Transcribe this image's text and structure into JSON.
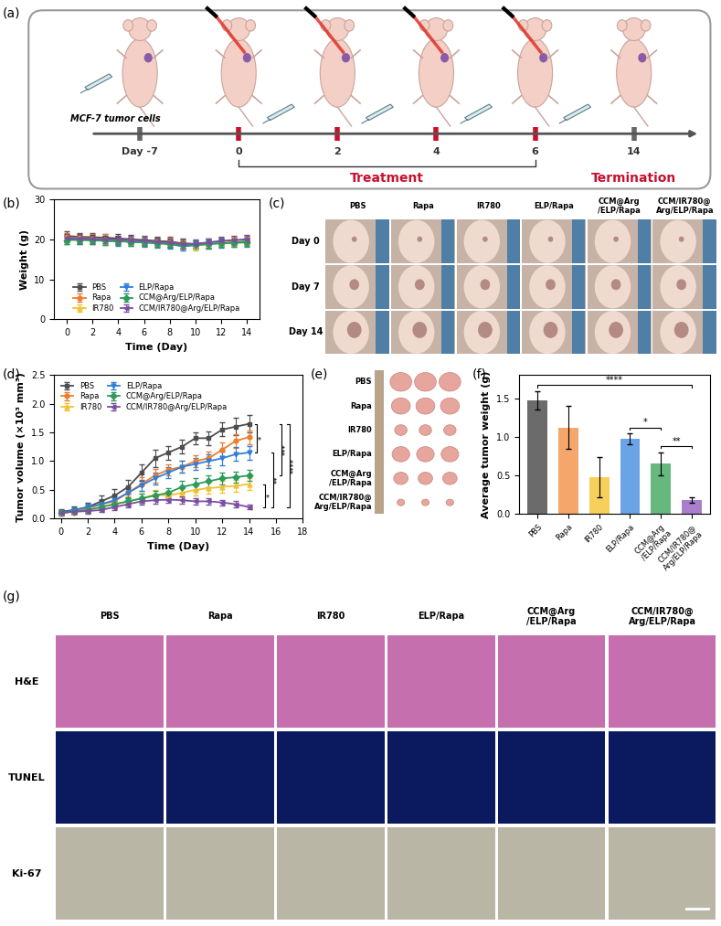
{
  "schematic": {
    "panel": "(a)",
    "cell_label": "MCF-7 tumor cells",
    "day_labels": [
      "Day -7",
      "0",
      "2",
      "4",
      "6",
      "14"
    ],
    "treatment_label": "Treatment",
    "termination_label": "Termination"
  },
  "photos": {
    "panel": "(c)",
    "columns": [
      "PBS",
      "Rapa",
      "IR780",
      "ELP/Rapa",
      "CCM@Arg\n/ELP/Rapa",
      "CCM/IR780@\nArg/ELP/Rapa"
    ],
    "rows": [
      "Day 0",
      "Day 7",
      "Day 14"
    ]
  },
  "tumors": {
    "panel": "(e)",
    "rows": [
      "PBS",
      "Rapa",
      "IR780",
      "ELP/Rapa",
      "CCM@Arg\n/ELP/Rapa",
      "CCM/IR780@\nArg/ELP/Rapa"
    ]
  },
  "histology": {
    "panel": "(g)",
    "columns": [
      "PBS",
      "Rapa",
      "IR780",
      "ELP/Rapa",
      "CCM@Arg\n/ELP/Rapa",
      "CCM/IR780@\nArg/ELP/Rapa"
    ],
    "rows": [
      "H&E",
      "TUNEL",
      "Ki-67"
    ]
  },
  "chart_data": [
    {
      "panel": "(b)",
      "type": "line",
      "xlabel": "Time (Day)",
      "ylabel": "Weight (g)",
      "x": [
        0,
        1,
        2,
        3,
        4,
        5,
        6,
        7,
        8,
        9,
        10,
        11,
        12,
        13,
        14
      ],
      "xlim": [
        -1,
        15
      ],
      "xticks": [
        0,
        2,
        4,
        6,
        8,
        10,
        12,
        14
      ],
      "ylim": [
        0,
        30
      ],
      "yticks": [
        0,
        10,
        20,
        30
      ],
      "legend": "lower center",
      "series": [
        {
          "name": "PBS",
          "color": "#4d4d4d",
          "marker": "square",
          "values": [
            20.8,
            20.6,
            20.5,
            20.4,
            20.2,
            20.0,
            19.8,
            19.6,
            19.4,
            19.0,
            18.8,
            19.0,
            19.4,
            19.6,
            19.8
          ],
          "errors": [
            1.2,
            1.0,
            1.1,
            1.0,
            1.2,
            1.0,
            1.1,
            1.0,
            1.2,
            1.1,
            1.0,
            1.1,
            1.0,
            1.0,
            1.1
          ]
        },
        {
          "name": "Rapa",
          "color": "#f07d2e",
          "marker": "circle",
          "values": [
            20.5,
            20.3,
            20.2,
            20.0,
            19.8,
            19.6,
            19.5,
            19.4,
            19.2,
            18.8,
            18.6,
            18.8,
            19.2,
            19.4,
            19.5
          ],
          "errors": [
            1.0,
            1.1,
            1.0,
            1.2,
            1.0,
            1.1,
            1.0,
            1.0,
            1.1,
            1.2,
            1.0,
            1.1,
            1.0,
            1.1,
            1.0
          ]
        },
        {
          "name": "IR780",
          "color": "#f2c230",
          "marker": "triangle_up",
          "values": [
            20.2,
            20.1,
            20.0,
            19.9,
            19.8,
            19.6,
            19.4,
            19.2,
            19.0,
            18.6,
            18.4,
            18.8,
            19.2,
            19.4,
            19.6
          ],
          "errors": [
            0.9,
            1.0,
            1.1,
            1.0,
            0.9,
            1.0,
            1.1,
            1.0,
            0.9,
            1.0,
            1.1,
            1.0,
            0.9,
            1.0,
            0.9
          ]
        },
        {
          "name": "ELP/Rapa",
          "color": "#2f7fd8",
          "marker": "triangle_down",
          "values": [
            20.0,
            19.9,
            19.8,
            19.6,
            19.5,
            19.4,
            19.2,
            19.0,
            18.8,
            18.2,
            18.5,
            18.8,
            19.0,
            19.2,
            19.4
          ],
          "errors": [
            1.1,
            1.0,
            0.9,
            1.0,
            1.1,
            1.0,
            0.9,
            1.0,
            1.1,
            1.0,
            0.9,
            1.0,
            1.1,
            1.0,
            1.0
          ]
        },
        {
          "name": "CCM@Arg/ELP/Rapa",
          "color": "#2e9b58",
          "marker": "diamond",
          "values": [
            19.8,
            19.8,
            19.7,
            19.6,
            19.5,
            19.3,
            19.2,
            19.0,
            18.8,
            18.5,
            18.6,
            18.8,
            19.0,
            19.1,
            19.2
          ],
          "errors": [
            1.0,
            0.9,
            1.0,
            1.1,
            1.0,
            0.9,
            1.0,
            1.1,
            1.0,
            0.9,
            1.0,
            1.1,
            1.0,
            0.9,
            1.0
          ]
        },
        {
          "name": "CCM/IR780@Arg/ELP/Rapa",
          "color": "#7b4ea3",
          "marker": "triangle_left",
          "values": [
            20.3,
            20.2,
            20.1,
            20.0,
            19.9,
            19.8,
            19.6,
            19.4,
            19.2,
            18.8,
            18.9,
            19.2,
            19.6,
            19.8,
            20.0
          ],
          "errors": [
            1.0,
            1.1,
            1.0,
            0.9,
            1.0,
            1.1,
            1.0,
            0.9,
            1.0,
            1.1,
            1.0,
            0.9,
            1.0,
            1.1,
            1.0
          ]
        }
      ]
    },
    {
      "panel": "(d)",
      "type": "line",
      "xlabel": "Time (Day)",
      "ylabel": "Tumor volume (×10³ mm³)",
      "x": [
        0,
        1,
        2,
        3,
        4,
        5,
        6,
        7,
        8,
        9,
        10,
        11,
        12,
        13,
        14
      ],
      "xlim": [
        -0.5,
        18
      ],
      "xticks": [
        0,
        2,
        4,
        6,
        8,
        10,
        12,
        14,
        16,
        18
      ],
      "ylim": [
        0,
        2.5
      ],
      "yticks": [
        {
          "value": 0,
          "label": "0.0"
        },
        {
          "value": 0.5,
          "label": "0.5"
        },
        {
          "value": 1.0,
          "label": "1.0"
        },
        {
          "value": 1.5,
          "label": "1.5"
        },
        {
          "value": 2.0,
          "label": "2.0"
        },
        {
          "value": 2.5,
          "label": "2.5"
        }
      ],
      "legend": "upper left",
      "series": [
        {
          "name": "PBS",
          "color": "#4d4d4d",
          "marker": "square",
          "values": [
            0.12,
            0.15,
            0.2,
            0.3,
            0.4,
            0.55,
            0.8,
            1.05,
            1.15,
            1.25,
            1.4,
            1.4,
            1.55,
            1.6,
            1.65
          ],
          "errors": [
            0.05,
            0.06,
            0.08,
            0.1,
            0.12,
            0.12,
            0.15,
            0.15,
            0.12,
            0.12,
            0.1,
            0.12,
            0.12,
            0.15,
            0.15
          ]
        },
        {
          "name": "Rapa",
          "color": "#f07d2e",
          "marker": "circle",
          "values": [
            0.1,
            0.12,
            0.18,
            0.25,
            0.3,
            0.45,
            0.6,
            0.75,
            0.85,
            0.9,
            1.0,
            1.05,
            1.2,
            1.35,
            1.42
          ],
          "errors": [
            0.04,
            0.05,
            0.06,
            0.08,
            0.1,
            0.1,
            0.12,
            0.12,
            0.1,
            0.1,
            0.1,
            0.12,
            0.12,
            0.12,
            0.12
          ]
        },
        {
          "name": "IR780",
          "color": "#f2c230",
          "marker": "triangle_up",
          "values": [
            0.1,
            0.12,
            0.15,
            0.2,
            0.25,
            0.3,
            0.35,
            0.42,
            0.4,
            0.45,
            0.5,
            0.53,
            0.55,
            0.57,
            0.6
          ],
          "errors": [
            0.03,
            0.04,
            0.05,
            0.06,
            0.07,
            0.08,
            0.08,
            0.08,
            0.08,
            0.08,
            0.1,
            0.1,
            0.1,
            0.1,
            0.1
          ]
        },
        {
          "name": "ELP/Rapa",
          "color": "#2f7fd8",
          "marker": "triangle_down",
          "values": [
            0.1,
            0.15,
            0.2,
            0.25,
            0.32,
            0.45,
            0.58,
            0.7,
            0.8,
            0.9,
            0.95,
            1.0,
            1.05,
            1.12,
            1.15
          ],
          "errors": [
            0.04,
            0.05,
            0.06,
            0.07,
            0.08,
            0.1,
            0.1,
            0.1,
            0.1,
            0.1,
            0.1,
            0.12,
            0.12,
            0.12,
            0.12
          ]
        },
        {
          "name": "CCM@Arg/ELP/Rapa",
          "color": "#2e9b58",
          "marker": "diamond",
          "values": [
            0.1,
            0.12,
            0.15,
            0.2,
            0.25,
            0.3,
            0.35,
            0.4,
            0.45,
            0.55,
            0.6,
            0.65,
            0.7,
            0.72,
            0.75
          ],
          "errors": [
            0.03,
            0.04,
            0.05,
            0.06,
            0.06,
            0.07,
            0.08,
            0.08,
            0.08,
            0.1,
            0.1,
            0.1,
            0.1,
            0.1,
            0.1
          ]
        },
        {
          "name": "CCM/IR780@Arg/ELP/Rapa",
          "color": "#7b4ea3",
          "marker": "triangle_left",
          "values": [
            0.1,
            0.12,
            0.13,
            0.15,
            0.2,
            0.25,
            0.3,
            0.32,
            0.33,
            0.32,
            0.3,
            0.3,
            0.28,
            0.25,
            0.2
          ],
          "errors": [
            0.03,
            0.03,
            0.04,
            0.04,
            0.05,
            0.05,
            0.06,
            0.06,
            0.06,
            0.06,
            0.06,
            0.05,
            0.05,
            0.05,
            0.04
          ]
        }
      ],
      "significance": [
        {
          "series": [
            "PBS",
            "ELP/Rapa"
          ],
          "label": "*"
        },
        {
          "series": [
            "IR780",
            "CCM/IR780@Arg/ELP/Rapa"
          ],
          "label": "*"
        },
        {
          "series": [
            "ELP/Rapa",
            "CCM/IR780@Arg/ELP/Rapa"
          ],
          "label": "**"
        },
        {
          "series": [
            "PBS",
            "CCM@Arg/ELP/Rapa"
          ],
          "label": "***"
        },
        {
          "series": [
            "PBS",
            "CCM/IR780@Arg/ELP/Rapa"
          ],
          "label": "****"
        }
      ]
    },
    {
      "panel": "(f)",
      "type": "bar",
      "ylabel": "Average tumor weight (g)",
      "categories": [
        "PBS",
        "Rapa",
        "IR780",
        "ELP/Rapa",
        "CCM@Arg\n/ELP/Rapa",
        "CCM/IR780@\nArg/ELP/Rapa"
      ],
      "values": [
        1.47,
        1.12,
        0.48,
        0.97,
        0.65,
        0.18
      ],
      "errors": [
        0.12,
        0.28,
        0.26,
        0.07,
        0.15,
        0.04
      ],
      "colors": [
        "#6b6b6b",
        "#f5a66a",
        "#f6cf5c",
        "#6aa3e6",
        "#66b87f",
        "#a77fcb"
      ],
      "ylim": [
        0,
        1.8
      ],
      "yticks": [
        {
          "value": 0,
          "label": "0.0"
        },
        {
          "value": 0.5,
          "label": "0.5"
        },
        {
          "value": 1.0,
          "label": "1.0"
        },
        {
          "value": 1.5,
          "label": "1.5"
        }
      ],
      "significance": [
        {
          "between": [
            3,
            4
          ],
          "label": "*"
        },
        {
          "between": [
            4,
            5
          ],
          "label": "**"
        },
        {
          "between": [
            0,
            5
          ],
          "label": "****"
        }
      ]
    }
  ]
}
